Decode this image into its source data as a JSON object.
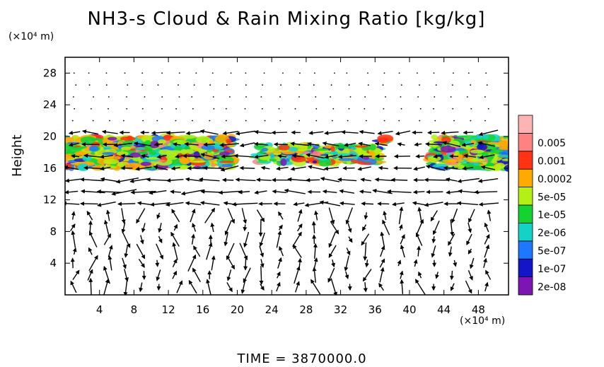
{
  "chart_data": {
    "type": "heatmap",
    "title": "NH3-s Cloud & Rain Mixing Ratio [kg/kg]",
    "xlabel": "",
    "ylabel": "Height",
    "x_unit": "(×10⁴ m)",
    "y_unit": "(×10⁴ m)",
    "time_label": "TIME  =  3870000.0",
    "xlim": [
      0,
      51.5
    ],
    "ylim": [
      0,
      30
    ],
    "x_ticks": [
      4,
      8,
      12,
      16,
      20,
      24,
      28,
      32,
      36,
      40,
      44,
      48
    ],
    "y_ticks": [
      4,
      8,
      12,
      16,
      20,
      24,
      28
    ],
    "colorbar": {
      "levels": [
        "2e-08",
        "1e-07",
        "5e-07",
        "2e-06",
        "1e-05",
        "5e-05",
        "0.0002",
        "0.001",
        "0.005"
      ],
      "colors": [
        "#7d14b4",
        "#1414c8",
        "#1e78ff",
        "#14d2c8",
        "#14d232",
        "#b4f014",
        "#ffaa00",
        "#ff3214",
        "#ff8282",
        "#ffb4b4"
      ]
    },
    "cloud_regions": [
      {
        "x0": 0.0,
        "x1": 19.6,
        "y0": 16.0,
        "y1": 20.0
      },
      {
        "x0": 22.2,
        "x1": 36.5,
        "y0": 16.6,
        "y1": 18.9
      },
      {
        "x0": 36.5,
        "x1": 37.8,
        "y0": 19.0,
        "y1": 19.8
      },
      {
        "x0": 42.5,
        "x1": 51.5,
        "y0": 15.9,
        "y1": 20.0
      }
    ],
    "wind_vectors_present": true
  },
  "colors": {
    "background": "#ffffff",
    "axes": "#000000",
    "arrows": "#000000"
  }
}
